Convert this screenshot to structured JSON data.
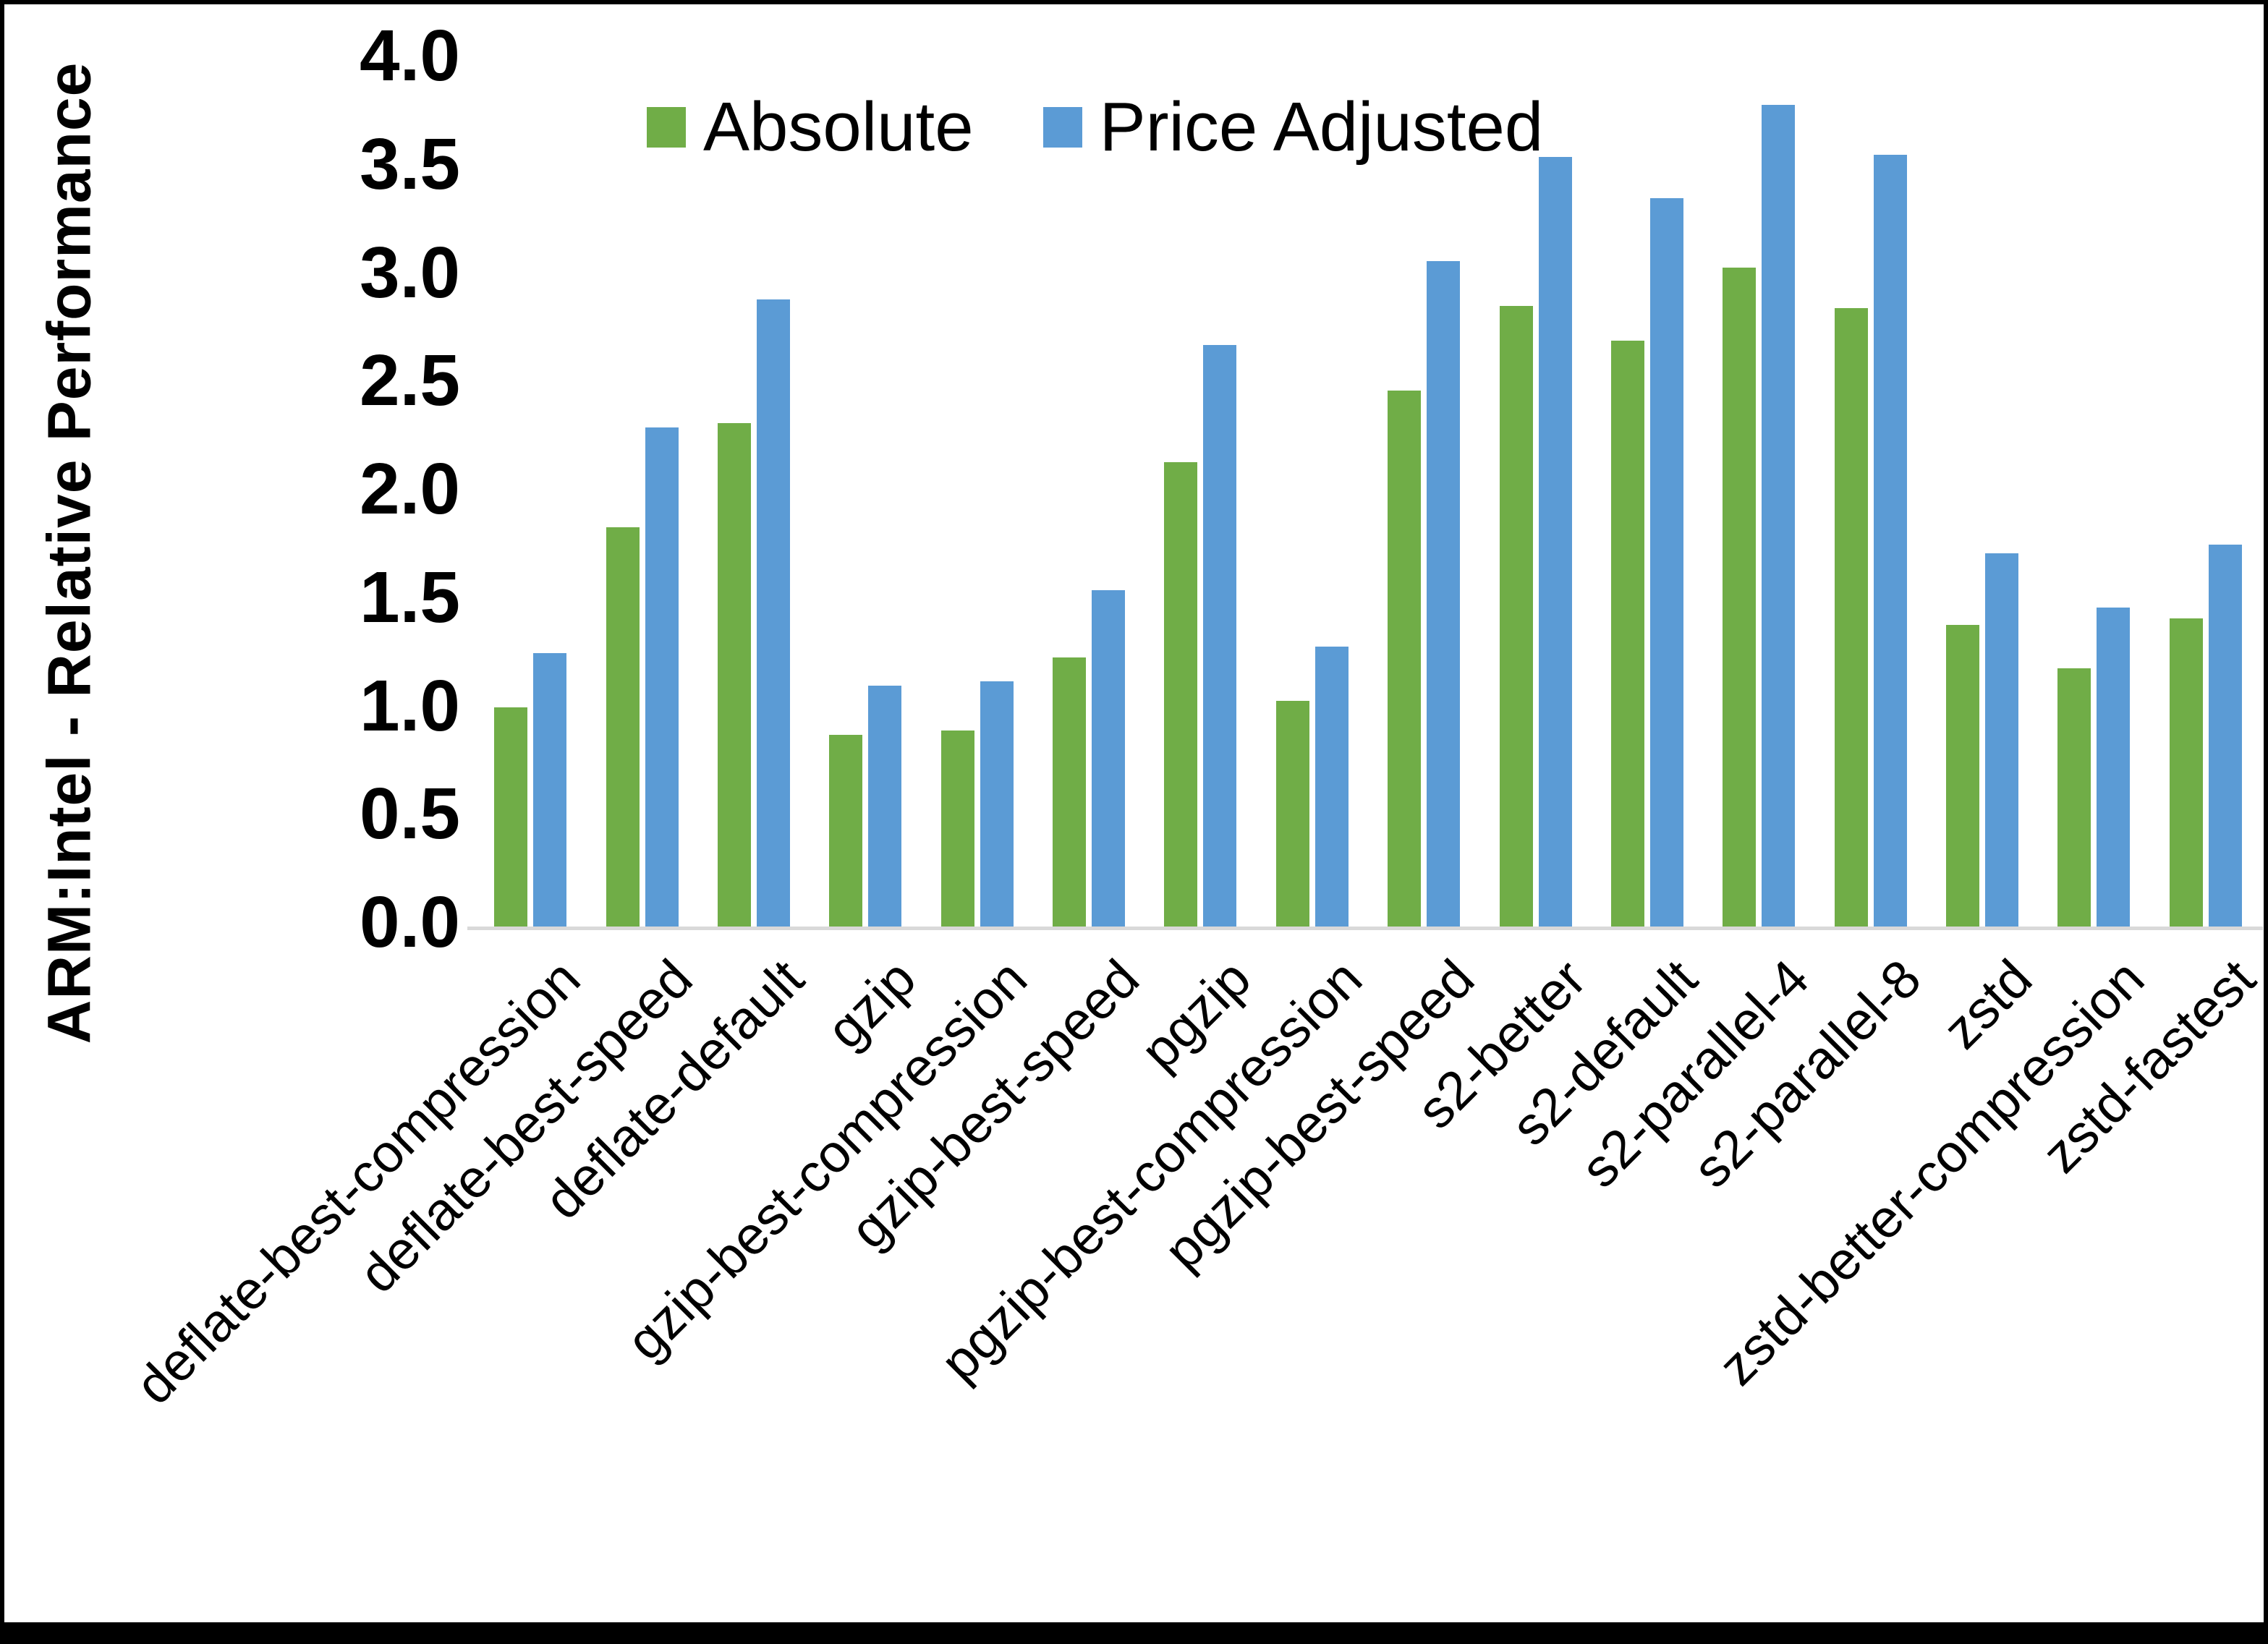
{
  "chart_data": {
    "type": "bar",
    "title": "",
    "xlabel": "",
    "ylabel": "ARM:Intel - Relative Performance",
    "ylim": [
      0.0,
      4.0
    ],
    "ytick_step": 0.5,
    "yticks": [
      "4.0",
      "3.5",
      "3.0",
      "2.5",
      "2.0",
      "1.5",
      "1.0",
      "0.5",
      "0.0"
    ],
    "grid": false,
    "legend_position": "top-center",
    "axis_line_color": "#d9d9d9",
    "background_color": "#ffffff",
    "frame_color": "#000000",
    "categories": [
      "deflate-best-compression",
      "deflate-best-speed",
      "deflate-default",
      "gzip",
      "gzip-best-compression",
      "gzip-best-speed",
      "pgzip",
      "pgzip-best-compression",
      "pgzip-best-speed",
      "s2-better",
      "s2-default",
      "s2-parallel-4",
      "s2-parallel-8",
      "zstd",
      "zstd-better-compression",
      "zstd-fastest"
    ],
    "series": [
      {
        "name": "Absolute",
        "color": "#70AD47",
        "values": [
          1.02,
          1.85,
          2.33,
          0.89,
          0.91,
          1.25,
          2.15,
          1.05,
          2.48,
          2.87,
          2.71,
          3.05,
          2.86,
          1.4,
          1.2,
          1.43
        ]
      },
      {
        "name": "Price Adjusted",
        "color": "#5B9BD5",
        "values": [
          1.27,
          2.31,
          2.9,
          1.12,
          1.14,
          1.56,
          2.69,
          1.3,
          3.08,
          3.56,
          3.37,
          3.8,
          3.57,
          1.73,
          1.48,
          1.77
        ]
      }
    ]
  }
}
